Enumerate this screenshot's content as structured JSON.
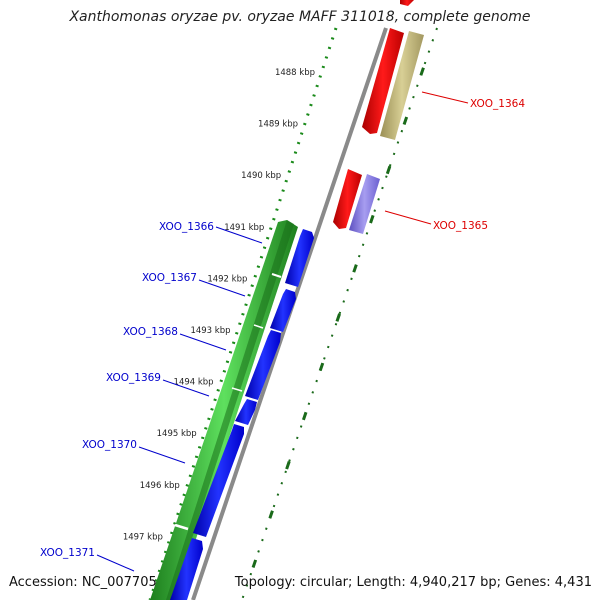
{
  "title": "Xanthomonas oryzae pv. oryzae MAFF 311018, complete genome",
  "footer": {
    "accession": "Accession: NC_007705",
    "topology": "Topology: circular; Length: 4,940,217 bp; Genes: 4,431"
  },
  "colors": {
    "backbone": "#8a8a8a",
    "tick_dots": "#1a8a1a",
    "reverse_ticks": "#1a6a1a",
    "green_track": "#2ea02e",
    "blue_track": "#0000ee",
    "red_gene": "#ee0000",
    "khaki_gene": "#b3a86a",
    "violet_gene": "#7b6fd6",
    "blue_label": "#0000cc",
    "red_label": "#dd0000"
  },
  "ticks": [
    {
      "label": "1488 kbp"
    },
    {
      "label": "1489 kbp"
    },
    {
      "label": "1490 kbp"
    },
    {
      "label": "1491 kbp"
    },
    {
      "label": "1492 kbp"
    },
    {
      "label": "1493 kbp"
    },
    {
      "label": "1494 kbp"
    },
    {
      "label": "1495 kbp"
    },
    {
      "label": "1496 kbp"
    },
    {
      "label": "1497 kbp"
    }
  ],
  "gene_labels": {
    "blue": [
      "XOO_1366",
      "XOO_1367",
      "XOO_1368",
      "XOO_1369",
      "XOO_1370",
      "XOO_1371"
    ],
    "red": [
      "XOO_1364",
      "XOO_1365"
    ]
  }
}
